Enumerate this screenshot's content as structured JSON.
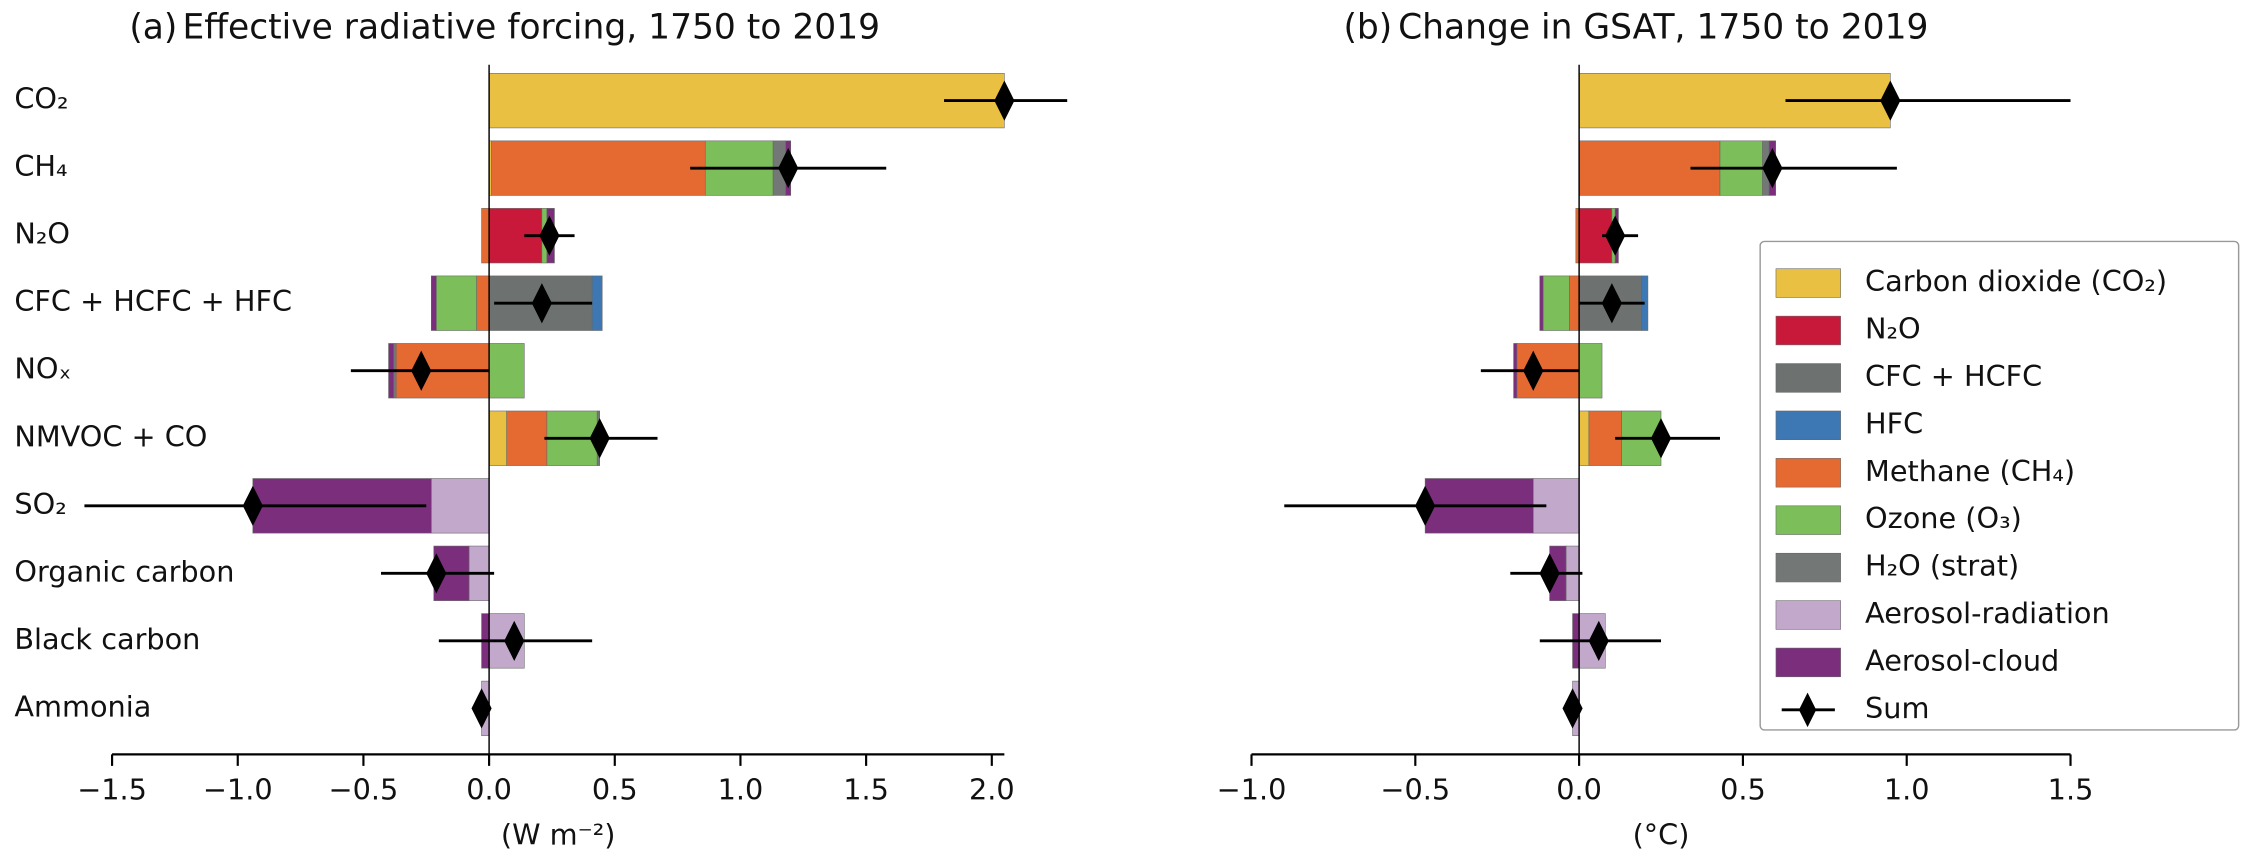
{
  "chart_data": [
    {
      "type": "bar",
      "orientation": "horizontal",
      "stacked": true,
      "panel": "(a)",
      "title": "Effective radiative forcing,  1750 to 2019",
      "xlabel": "(W m⁻²)",
      "categories": [
        "CO₂",
        "CH₄",
        "N₂O",
        "CFC + HCFC + HFC",
        "NOₓ",
        "NMVOC + CO",
        "SO₂",
        "Organic carbon",
        "Black carbon",
        "Ammonia"
      ],
      "xlim": [
        -1.5,
        2.05
      ],
      "xticks": [
        {
          "value": -1.5,
          "label": "−1.5"
        },
        {
          "value": -1.0,
          "label": "−1.0"
        },
        {
          "value": -0.5,
          "label": "−0.5"
        },
        {
          "value": 0.0,
          "label": "0.0"
        },
        0.5,
        {
          "value": 1.0,
          "label": "1.0"
        },
        1.5,
        {
          "value": 2.0,
          "label": "2.0"
        }
      ],
      "series": [
        {
          "color": "#e9c042",
          "values": [
            2.05,
            0.01,
            null,
            null,
            null,
            0.07,
            null,
            null,
            null,
            null
          ]
        },
        {
          "color": "#c8193a",
          "values": [
            null,
            null,
            0.21,
            null,
            null,
            null,
            null,
            null,
            null,
            null
          ]
        },
        {
          "color": "#6d7170",
          "values": [
            null,
            null,
            null,
            0.41,
            null,
            null,
            null,
            null,
            null,
            null
          ]
        },
        {
          "color": "#3d78b4",
          "values": [
            null,
            null,
            null,
            0.04,
            null,
            null,
            null,
            null,
            null,
            null
          ]
        },
        {
          "color": "#e56a32",
          "values": [
            null,
            0.85,
            -0.03,
            -0.05,
            -0.37,
            0.16,
            null,
            null,
            null,
            null
          ]
        },
        {
          "color": "#7cbf5a",
          "values": [
            null,
            0.27,
            0.02,
            -0.16,
            0.14,
            0.2,
            null,
            null,
            null,
            null
          ]
        },
        {
          "color": "#737877",
          "values": [
            null,
            0.05,
            null,
            null,
            -0.01,
            0.01,
            null,
            null,
            null,
            null
          ]
        },
        {
          "color": "#c2a9cc",
          "values": [
            null,
            null,
            null,
            null,
            null,
            null,
            -0.23,
            -0.08,
            0.14,
            -0.03
          ]
        },
        {
          "color": "#7a2e7c",
          "values": [
            null,
            0.02,
            0.03,
            -0.02,
            -0.02,
            null,
            -0.71,
            -0.14,
            -0.03,
            null
          ]
        }
      ],
      "sum": {
        "values": [
          2.05,
          1.19,
          0.24,
          0.21,
          -0.27,
          0.44,
          -0.94,
          -0.21,
          0.1,
          -0.03
        ],
        "low": [
          1.81,
          0.8,
          0.14,
          0.02,
          -0.55,
          0.22,
          -1.61,
          -0.43,
          -0.2,
          null
        ],
        "high": [
          2.3,
          1.58,
          0.34,
          0.41,
          0.0,
          0.67,
          -0.25,
          0.02,
          0.41,
          null
        ]
      }
    },
    {
      "type": "bar",
      "orientation": "horizontal",
      "stacked": true,
      "panel": "(b)",
      "title": "Change in GSAT, 1750 to 2019",
      "xlabel": "(°C)",
      "xlim": [
        -1.0,
        1.5
      ],
      "xticks": [
        {
          "value": -1.0,
          "label": "−1.0"
        },
        {
          "value": -0.5,
          "label": "−0.5"
        },
        {
          "value": 0.0,
          "label": "0.0"
        },
        0.5,
        {
          "value": 1.0,
          "label": "1.0"
        },
        1.5
      ],
      "legend": "center right",
      "series": [
        {
          "name": "Carbon dioxide (CO₂)",
          "color": "#e9c042",
          "values": [
            0.95,
            null,
            null,
            null,
            null,
            0.03,
            null,
            null,
            null,
            null
          ]
        },
        {
          "name": "N₂O",
          "color": "#c8193a",
          "values": [
            null,
            null,
            0.1,
            null,
            null,
            null,
            null,
            null,
            null,
            null
          ]
        },
        {
          "name": "CFC + HCFC",
          "color": "#6d7170",
          "values": [
            null,
            null,
            null,
            0.19,
            null,
            null,
            null,
            null,
            null,
            null
          ]
        },
        {
          "name": "HFC",
          "color": "#3d78b4",
          "values": [
            null,
            null,
            null,
            0.02,
            null,
            null,
            null,
            null,
            null,
            null
          ]
        },
        {
          "name": "Methane (CH₄)",
          "color": "#e56a32",
          "values": [
            null,
            0.43,
            -0.01,
            -0.03,
            -0.19,
            0.1,
            null,
            null,
            null,
            null
          ]
        },
        {
          "name": "Ozone (O₃)",
          "color": "#7cbf5a",
          "values": [
            null,
            0.13,
            0.01,
            -0.08,
            0.07,
            0.12,
            null,
            null,
            null,
            null
          ]
        },
        {
          "name": "H₂O (strat)",
          "color": "#737877",
          "values": [
            null,
            0.02,
            null,
            null,
            null,
            null,
            null,
            null,
            null,
            null
          ]
        },
        {
          "name": "Aerosol-radiation",
          "color": "#c2a9cc",
          "values": [
            null,
            null,
            null,
            null,
            null,
            null,
            -0.14,
            -0.04,
            0.08,
            -0.02
          ]
        },
        {
          "name": "Aerosol-cloud",
          "color": "#7a2e7c",
          "values": [
            null,
            0.02,
            0.01,
            -0.01,
            -0.01,
            null,
            -0.33,
            -0.05,
            -0.02,
            null
          ]
        }
      ],
      "sum": {
        "name": "Sum",
        "values": [
          0.95,
          0.59,
          0.11,
          0.1,
          -0.14,
          0.25,
          -0.47,
          -0.09,
          0.06,
          -0.02
        ],
        "low": [
          0.63,
          0.34,
          0.07,
          0.0,
          -0.3,
          0.11,
          -0.9,
          -0.21,
          -0.12,
          null
        ],
        "high": [
          1.5,
          0.97,
          0.18,
          0.2,
          0.0,
          0.43,
          -0.1,
          0.01,
          0.25,
          null
        ]
      }
    }
  ]
}
